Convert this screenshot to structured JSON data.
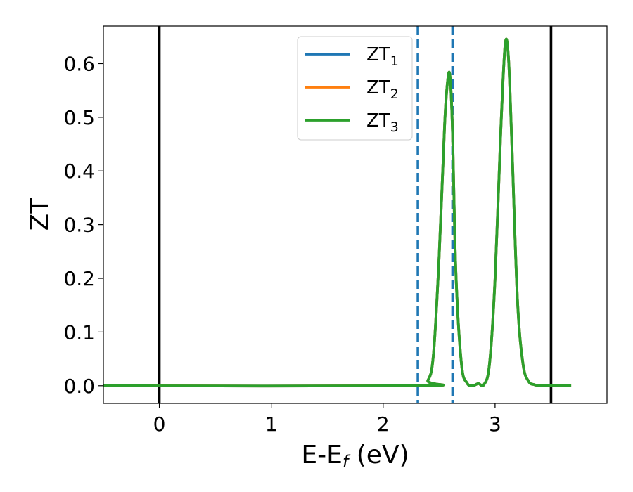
{
  "chart_data": {
    "type": "line",
    "title": "",
    "xlabel": "E-E",
    "xlabel_sub": "f",
    "xlabel_unit": " (eV)",
    "ylabel": "ZT",
    "xlim": [
      -0.5,
      4.0
    ],
    "ylim": [
      -0.033,
      0.67
    ],
    "grid": false,
    "legend": "upper center",
    "xticks": [
      0,
      1,
      2,
      3
    ],
    "xtick_labels": [
      "0",
      "1",
      "2",
      "3"
    ],
    "yticks": [
      0.0,
      0.1,
      0.2,
      0.3,
      0.4,
      0.5,
      0.6
    ],
    "ytick_labels": [
      "0.0",
      "0.1",
      "0.2",
      "0.3",
      "0.4",
      "0.5",
      "0.6"
    ],
    "series": [
      {
        "name": "ZT",
        "name_sub": "1",
        "color": "#1f77b4",
        "x": [
          -0.5,
          2.3,
          2.4,
          2.45,
          2.5,
          2.55,
          2.58,
          2.6,
          2.62,
          2.65,
          2.7,
          2.75,
          2.8,
          2.85,
          2.9,
          2.95,
          3.0,
          3.05,
          3.09,
          3.12,
          3.15,
          3.2,
          3.25,
          3.3,
          3.35,
          3.4,
          3.5,
          3.68
        ],
        "y": [
          0.0,
          0.0,
          0.01,
          0.06,
          0.24,
          0.49,
          0.575,
          0.57,
          0.47,
          0.21,
          0.04,
          0.005,
          0.0,
          0.004,
          0.002,
          0.04,
          0.2,
          0.47,
          0.635,
          0.61,
          0.45,
          0.16,
          0.04,
          0.008,
          0.002,
          0.0,
          0.0,
          0.0
        ]
      },
      {
        "name": "ZT",
        "name_sub": "2",
        "color": "#ff7f0e",
        "x": [
          -0.5,
          2.3,
          2.4,
          2.45,
          2.5,
          2.55,
          2.58,
          2.6,
          2.62,
          2.65,
          2.7,
          2.75,
          2.8,
          2.85,
          2.9,
          2.95,
          3.0,
          3.05,
          3.09,
          3.12,
          3.15,
          3.2,
          3.25,
          3.3,
          3.35,
          3.4,
          3.5,
          3.68
        ],
        "y": [
          0.0,
          0.0,
          0.01,
          0.06,
          0.24,
          0.49,
          0.575,
          0.57,
          0.47,
          0.21,
          0.04,
          0.005,
          0.0,
          0.004,
          0.002,
          0.04,
          0.2,
          0.47,
          0.635,
          0.61,
          0.45,
          0.16,
          0.04,
          0.008,
          0.002,
          0.0,
          0.0,
          0.0
        ]
      },
      {
        "name": "ZT",
        "name_sub": "3",
        "color": "#2ca02c",
        "x": [
          -0.5,
          2.3,
          2.4,
          2.45,
          2.5,
          2.55,
          2.58,
          2.6,
          2.62,
          2.65,
          2.7,
          2.75,
          2.8,
          2.85,
          2.9,
          2.95,
          3.0,
          3.05,
          3.09,
          3.12,
          3.15,
          3.2,
          3.25,
          3.3,
          3.35,
          3.4,
          3.5,
          3.68
        ],
        "y": [
          0.0,
          0.0,
          0.01,
          0.06,
          0.24,
          0.49,
          0.575,
          0.57,
          0.47,
          0.21,
          0.04,
          0.005,
          0.0,
          0.004,
          0.002,
          0.04,
          0.2,
          0.47,
          0.635,
          0.61,
          0.45,
          0.16,
          0.04,
          0.008,
          0.002,
          0.0,
          0.0,
          0.0
        ]
      }
    ],
    "vlines": [
      {
        "x": 0.0,
        "style": "solid",
        "color": "#000000"
      },
      {
        "x": 3.5,
        "style": "solid",
        "color": "#000000"
      },
      {
        "x": 2.31,
        "style": "dashed",
        "color": "#1f77b4"
      },
      {
        "x": 2.62,
        "style": "dashed",
        "color": "#1f77b4"
      }
    ]
  }
}
